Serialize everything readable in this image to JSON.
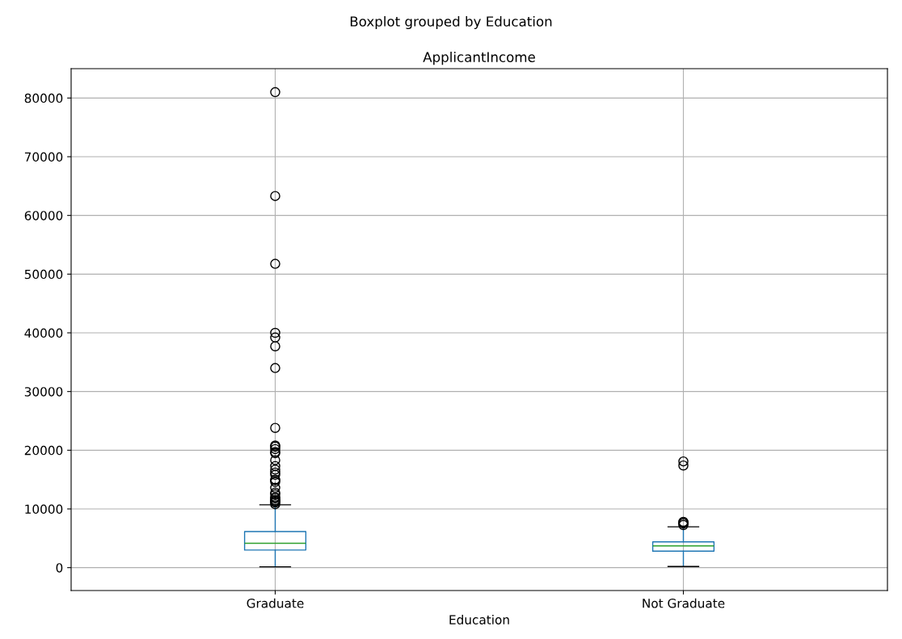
{
  "chart_data": {
    "type": "box",
    "title": "ApplicantIncome",
    "subtitle": "Boxplot grouped by Education",
    "xlabel": "Education",
    "categories": [
      "Graduate",
      "Not Graduate"
    ],
    "color": "#1f77b4",
    "boxes": [
      {
        "low": 150,
        "q1": 3000,
        "median": 4150,
        "q3": 6150,
        "high": 10700,
        "outliers": [
          81000,
          63300,
          51750,
          40000,
          39200,
          37700,
          34000,
          23800,
          20800,
          20600,
          20200,
          19700,
          19500,
          18300,
          17300,
          16700,
          16200,
          15800,
          15000,
          14900,
          14600,
          13600,
          12800,
          12500,
          12000,
          11800,
          11500,
          11400,
          11200,
          11100,
          10800
        ]
      },
      {
        "low": 200,
        "q1": 2800,
        "median": 3700,
        "q3": 4400,
        "high": 6950,
        "outliers": [
          18100,
          17400,
          7800,
          7700,
          7500,
          7250
        ]
      }
    ],
    "ylim": [
      -3900,
      85000
    ],
    "yticks": [
      0,
      10000,
      20000,
      30000,
      40000,
      50000,
      60000,
      70000,
      80000
    ],
    "grid": true
  }
}
